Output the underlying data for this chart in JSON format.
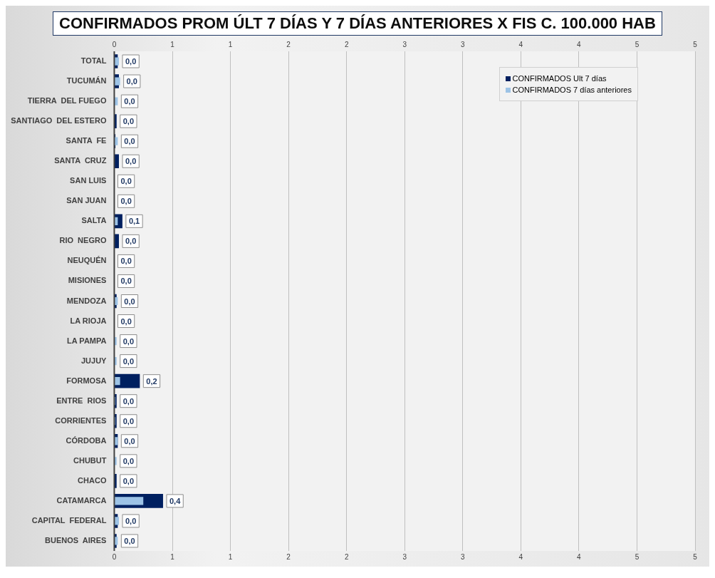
{
  "chart_data": {
    "type": "bar",
    "orientation": "horizontal",
    "title": "CONFIRMADOS PROM ÚLT 7 DÍAS Y 7 DÍAS ANTERIORES X FIS C. 100.000 HAB",
    "categories": [
      "TOTAL",
      "TUCUMÁN",
      "TIERRA  DEL FUEGO",
      "SANTIAGO  DEL ESTERO",
      "SANTA  FE",
      "SANTA  CRUZ",
      "SAN LUIS",
      "SAN JUAN",
      "SALTA",
      "RIO  NEGRO",
      "NEUQUÉN",
      "MISIONES",
      "MENDOZA",
      "LA RIOJA",
      "LA PAMPA",
      "JUJUY",
      "FORMOSA",
      "ENTRE  RIOS",
      "CORRIENTES",
      "CÓRDOBA",
      "CHUBUT",
      "CHACO",
      "CATAMARCA",
      "CAPITAL  FEDERAL",
      "BUENOS  AIRES"
    ],
    "series": [
      {
        "name": "CONFIRMADOS Ult 7 días",
        "color": "#002060",
        "values": [
          0.03,
          0.04,
          0,
          0.02,
          0.01,
          0.04,
          0,
          0,
          0.07,
          0.04,
          0,
          0,
          0.02,
          0,
          0,
          0,
          0.22,
          0.02,
          0.02,
          0.03,
          0,
          0.02,
          0.42,
          0.03,
          0.02
        ],
        "value_labels": [
          "0,0",
          "0,0",
          "0,0",
          "0,0",
          "0,0",
          "0,0",
          "0,0",
          "0,0",
          "0,1",
          "0,0",
          "0,0",
          "0,0",
          "0,0",
          "0,0",
          "0,0",
          "0,0",
          "0,2",
          "0,0",
          "0,0",
          "0,0",
          "0,0",
          "0,0",
          "0,4",
          "0,0",
          "0,0"
        ]
      },
      {
        "name": "CONFIRMADOS 7 días anteriores",
        "color": "#9dc3e6",
        "values": [
          0.04,
          0.05,
          0.03,
          0,
          0.03,
          0,
          0,
          0,
          0.03,
          0,
          0,
          0,
          0.03,
          0,
          0.02,
          0.02,
          0.05,
          0.01,
          0.01,
          0.03,
          0.02,
          0,
          0.25,
          0.04,
          0.03
        ]
      }
    ],
    "xlim": [
      0,
      5
    ],
    "xticks": [
      0,
      {
        "value": 0.5,
        "label": "1"
      },
      1,
      {
        "value": 1.5,
        "label": "2"
      },
      2,
      {
        "value": 2.5,
        "label": "3"
      },
      3,
      {
        "value": 3.5,
        "label": "4"
      },
      4,
      {
        "value": 4.5,
        "label": "5"
      },
      5
    ],
    "x2lim": [
      0,
      5
    ],
    "x2ticks": [
      0,
      {
        "value": 0.5,
        "label": "1"
      },
      1,
      {
        "value": 1.5,
        "label": "2"
      },
      2,
      {
        "value": 2.5,
        "label": "3"
      },
      3,
      {
        "value": 3.5,
        "label": "4"
      },
      4,
      {
        "value": 4.5,
        "label": "5"
      },
      5
    ],
    "grid": "x",
    "legend": "top right"
  }
}
